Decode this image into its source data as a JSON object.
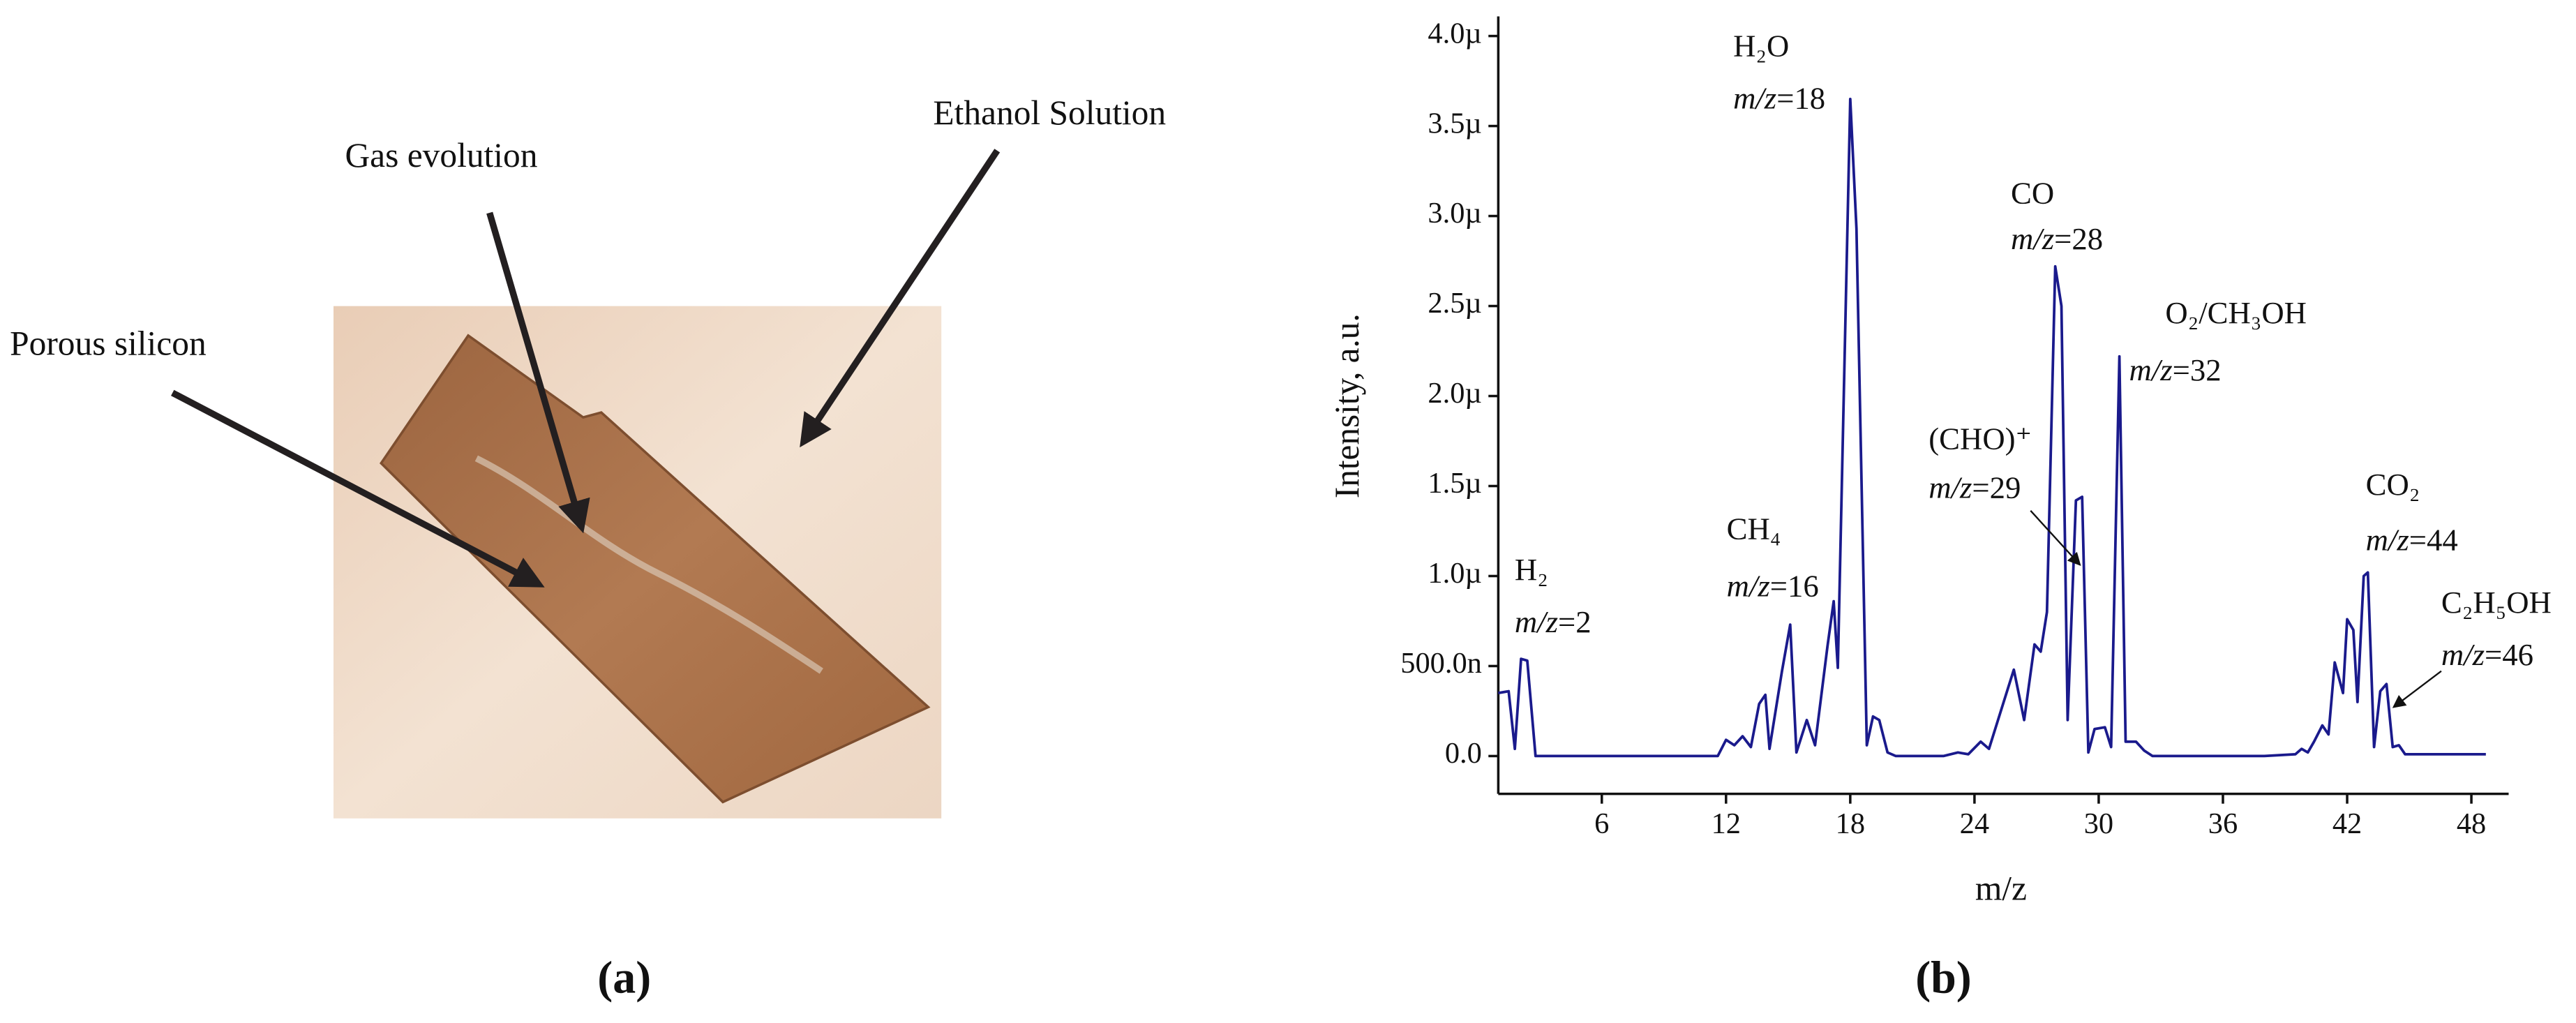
{
  "panel_a": {
    "labels": [
      "Porous silicon",
      "Gas evolution",
      "Ethanol Solution"
    ],
    "caption": "(a)"
  },
  "chart_data": {
    "type": "line",
    "caption": "(b)",
    "xlabel": "m/z",
    "ylabel": "Intensity, a.u.",
    "color": "#1a1a8c",
    "xlim": [
      1,
      49.8
    ],
    "xticks": [
      6,
      12,
      18,
      24,
      30,
      36,
      42,
      48
    ],
    "ylim": [
      -2.1e-07,
      4e-06
    ],
    "yticks": [
      {
        "value": 0,
        "label": "0.0"
      },
      {
        "value": 5e-07,
        "label": "500.0n"
      },
      {
        "value": 1e-06,
        "label": "1.0µ"
      },
      {
        "value": 1.5e-06,
        "label": "1.5µ"
      },
      {
        "value": 2e-06,
        "label": "2.0µ"
      },
      {
        "value": 2.5e-06,
        "label": "2.5µ"
      },
      {
        "value": 3e-06,
        "label": "3.0µ"
      },
      {
        "value": 3.5e-06,
        "label": "3.5µ"
      },
      {
        "value": 4e-06,
        "label": "4.0µ"
      }
    ],
    "x": [
      1.0,
      1.5,
      1.8,
      2.1,
      2.4,
      2.8,
      11.6,
      12.0,
      12.4,
      12.8,
      13.2,
      13.6,
      13.9,
      14.1,
      14.7,
      15.1,
      15.4,
      15.9,
      16.3,
      16.9,
      17.2,
      17.4,
      18.0,
      18.3,
      18.8,
      19.1,
      19.4,
      19.8,
      20.2,
      22.5,
      23.2,
      23.7,
      24.3,
      24.7,
      25.9,
      26.4,
      26.9,
      27.2,
      27.5,
      27.9,
      28.2,
      28.5,
      28.9,
      29.2,
      29.5,
      29.8,
      30.3,
      30.6,
      31.0,
      31.3,
      31.8,
      32.2,
      32.6,
      38.0,
      39.5,
      39.8,
      40.1,
      40.4,
      40.8,
      41.1,
      41.4,
      41.8,
      42.0,
      42.3,
      42.5,
      42.8,
      43.0,
      43.3,
      43.6,
      43.9,
      44.2,
      44.5,
      44.8,
      46.0,
      48.7
    ],
    "values": [
      3.5e-07,
      3.6e-07,
      4e-08,
      5.4e-07,
      5.3e-07,
      0,
      0,
      9e-08,
      6e-08,
      1.1e-07,
      5e-08,
      2.9e-07,
      3.4e-07,
      4e-08,
      4.7e-07,
      7.3e-07,
      2e-08,
      2e-07,
      6e-08,
      6.1e-07,
      8.6e-07,
      4.9e-07,
      3.65e-06,
      2.93e-06,
      6e-08,
      2.2e-07,
      2e-07,
      2e-08,
      0,
      0,
      2e-08,
      1e-08,
      8e-08,
      4e-08,
      4.8e-07,
      2e-07,
      6.2e-07,
      5.8e-07,
      8e-07,
      2.72e-06,
      2.5e-06,
      2e-07,
      1.42e-06,
      1.44e-06,
      2e-08,
      1.5e-07,
      1.6e-07,
      5e-08,
      2.22e-06,
      8e-08,
      8e-08,
      3e-08,
      0,
      0,
      1e-08,
      4e-08,
      2e-08,
      8e-08,
      1.7e-07,
      1.2e-07,
      5.2e-07,
      3.5e-07,
      7.6e-07,
      7e-07,
      3e-07,
      1e-06,
      1.02e-06,
      5e-08,
      3.6e-07,
      4e-07,
      5e-08,
      6e-08,
      1e-08,
      1e-08,
      1e-08
    ],
    "annotations": [
      {
        "species": "H₂",
        "mz": "m/z=2"
      },
      {
        "species": "H₂O",
        "mz": "m/z=18"
      },
      {
        "species": "CH₄",
        "mz": "m/z=16"
      },
      {
        "species": "CO",
        "mz": "m/z=28"
      },
      {
        "species": "(CHO)⁺",
        "mz": "m/z=29"
      },
      {
        "species": "O₂/CH₃OH",
        "mz": "m/z=32"
      },
      {
        "species": "CO₂",
        "mz": "m/z=44"
      },
      {
        "species": "C₂H₅OH",
        "mz": "m/z=46"
      }
    ]
  }
}
